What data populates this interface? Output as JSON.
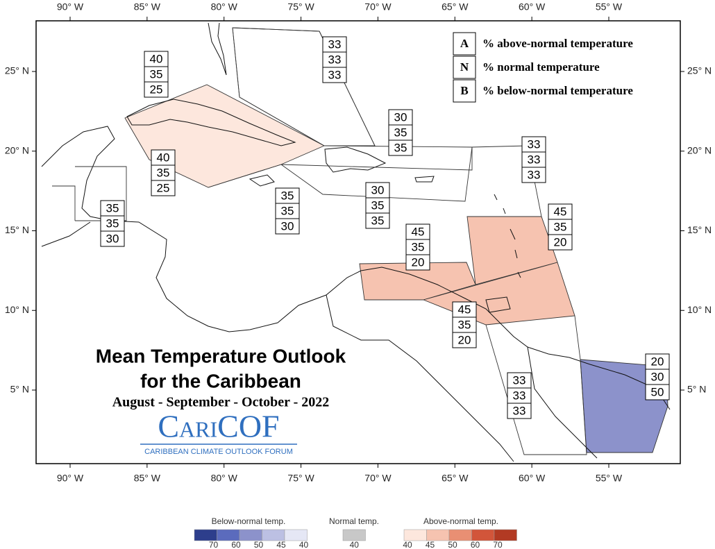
{
  "header": {
    "title": "Mean Temperature Outlook",
    "subtitle": "for the Caribbean",
    "period": "August - September - October - 2022",
    "logo": "CariCOF",
    "logo_caption": "CARIBBEAN CLIMATE OUTLOOK FORUM"
  },
  "map": {
    "lon_ticks": [
      {
        "value": -90,
        "label": "90° W"
      },
      {
        "value": -85,
        "label": "85° W"
      },
      {
        "value": -80,
        "label": "80° W"
      },
      {
        "value": -75,
        "label": "75° W"
      },
      {
        "value": -70,
        "label": "70° W"
      },
      {
        "value": -65,
        "label": "65° W"
      },
      {
        "value": -60,
        "label": "60° W"
      },
      {
        "value": -55,
        "label": "55° W"
      }
    ],
    "lat_ticks": [
      {
        "value": 25,
        "label": "25° N"
      },
      {
        "value": 20,
        "label": "20° N"
      },
      {
        "value": 15,
        "label": "15° N"
      },
      {
        "value": 10,
        "label": "10° N"
      },
      {
        "value": 5,
        "label": "5° N"
      }
    ],
    "regions": [
      {
        "above": 40,
        "normal": 35,
        "below": 25,
        "color": "#fde7dd"
      },
      {
        "above": 40,
        "normal": 35,
        "below": 25,
        "color": "#fde7dd"
      },
      {
        "above": 33,
        "normal": 33,
        "below": 33,
        "color": "#ffffff"
      },
      {
        "above": 30,
        "normal": 35,
        "below": 35,
        "color": "#ffffff"
      },
      {
        "above": 33,
        "normal": 33,
        "below": 33,
        "color": "#ffffff"
      },
      {
        "above": 35,
        "normal": 35,
        "below": 30,
        "color": "#ffffff"
      },
      {
        "above": 35,
        "normal": 35,
        "below": 30,
        "color": "#ffffff"
      },
      {
        "above": 30,
        "normal": 35,
        "below": 35,
        "color": "#ffffff"
      },
      {
        "above": 45,
        "normal": 35,
        "below": 20,
        "color": "#f6c3b0"
      },
      {
        "above": 45,
        "normal": 35,
        "below": 20,
        "color": "#f6c3b0"
      },
      {
        "above": 45,
        "normal": 35,
        "below": 20,
        "color": "#f6c3b0"
      },
      {
        "above": 33,
        "normal": 33,
        "below": 33,
        "color": "#ffffff"
      },
      {
        "above": 20,
        "normal": 30,
        "below": 50,
        "color": "#8c92cb"
      }
    ],
    "key": [
      {
        "letter": "A",
        "text": "% above-normal temperature"
      },
      {
        "letter": "N",
        "text": "% normal temperature"
      },
      {
        "letter": "B",
        "text": "% below-normal temperature"
      }
    ]
  },
  "colorbar": {
    "below": {
      "label": "Below-normal temp.",
      "ticks": [
        70,
        60,
        50,
        45,
        40
      ],
      "colors": [
        "#2d3e8c",
        "#5b6bbd",
        "#8c92cb",
        "#bcc0e3",
        "#e5e7f5"
      ]
    },
    "normal": {
      "label": "Normal temp.",
      "ticks": [
        40
      ],
      "colors": [
        "#c8c8c8"
      ]
    },
    "above": {
      "label": "Above-normal temp.",
      "ticks": [
        40,
        45,
        50,
        60,
        70
      ],
      "colors": [
        "#fde7dd",
        "#f6c3b0",
        "#e98f73",
        "#d2553a",
        "#b23a23"
      ]
    }
  }
}
